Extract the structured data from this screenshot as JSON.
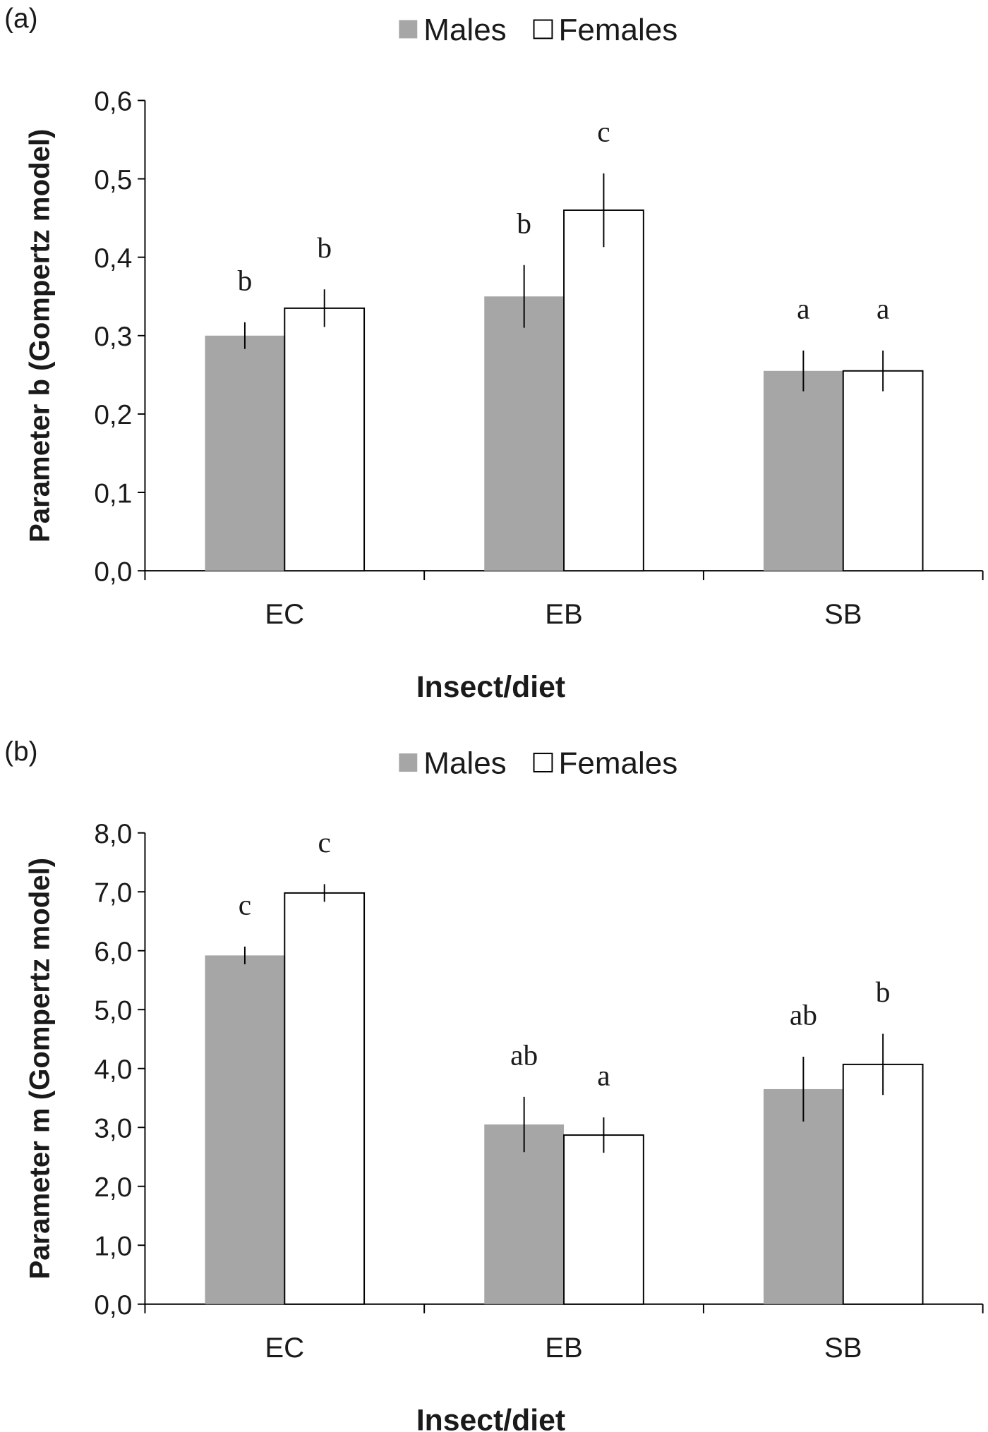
{
  "chart_data": [
    {
      "type": "bar",
      "panel": "(a)",
      "ylabel": "Parameter b (Gompertz model)",
      "xlabel": "Insect/diet",
      "categories": [
        "EC",
        "EB",
        "SB"
      ],
      "series": [
        {
          "name": "Males",
          "color": "#a6a6a6",
          "values": [
            0.3,
            0.35,
            0.255
          ],
          "errors": [
            0.017,
            0.04,
            0.026
          ],
          "letters": [
            "b",
            "b",
            "a"
          ]
        },
        {
          "name": "Females",
          "color": "#ffffff",
          "values": [
            0.335,
            0.46,
            0.255
          ],
          "errors": [
            0.024,
            0.047,
            0.026
          ],
          "letters": [
            "b",
            "c",
            "a"
          ]
        }
      ],
      "ylim": [
        0,
        0.6
      ],
      "yticks": [
        {
          "value": 0,
          "label": "0,0"
        },
        {
          "value": 0.1,
          "label": "0,1"
        },
        {
          "value": 0.2,
          "label": "0,2"
        },
        {
          "value": 0.3,
          "label": "0,3"
        },
        {
          "value": 0.4,
          "label": "0,4"
        },
        {
          "value": 0.5,
          "label": "0,5"
        },
        {
          "value": 0.6,
          "label": "0,6"
        }
      ]
    },
    {
      "type": "bar",
      "panel": "(b)",
      "ylabel": "Parameter m (Gompertz model)",
      "xlabel": "Insect/diet",
      "categories": [
        "EC",
        "EB",
        "SB"
      ],
      "series": [
        {
          "name": "Males",
          "color": "#a6a6a6",
          "values": [
            5.92,
            3.05,
            3.65
          ],
          "errors": [
            0.15,
            0.47,
            0.55
          ],
          "letters": [
            "c",
            "ab",
            "ab"
          ]
        },
        {
          "name": "Females",
          "color": "#ffffff",
          "values": [
            6.98,
            2.87,
            4.07
          ],
          "errors": [
            0.15,
            0.3,
            0.52
          ],
          "letters": [
            "c",
            "a",
            "b"
          ]
        }
      ],
      "ylim": [
        0,
        8
      ],
      "yticks": [
        {
          "value": 0,
          "label": "0,0"
        },
        {
          "value": 1,
          "label": "1,0"
        },
        {
          "value": 2,
          "label": "2,0"
        },
        {
          "value": 3,
          "label": "3,0"
        },
        {
          "value": 4,
          "label": "4,0"
        },
        {
          "value": 5,
          "label": "5,0"
        },
        {
          "value": 6,
          "label": "6,0"
        },
        {
          "value": 7,
          "label": "7,0"
        },
        {
          "value": 8,
          "label": "8,0"
        }
      ]
    }
  ]
}
